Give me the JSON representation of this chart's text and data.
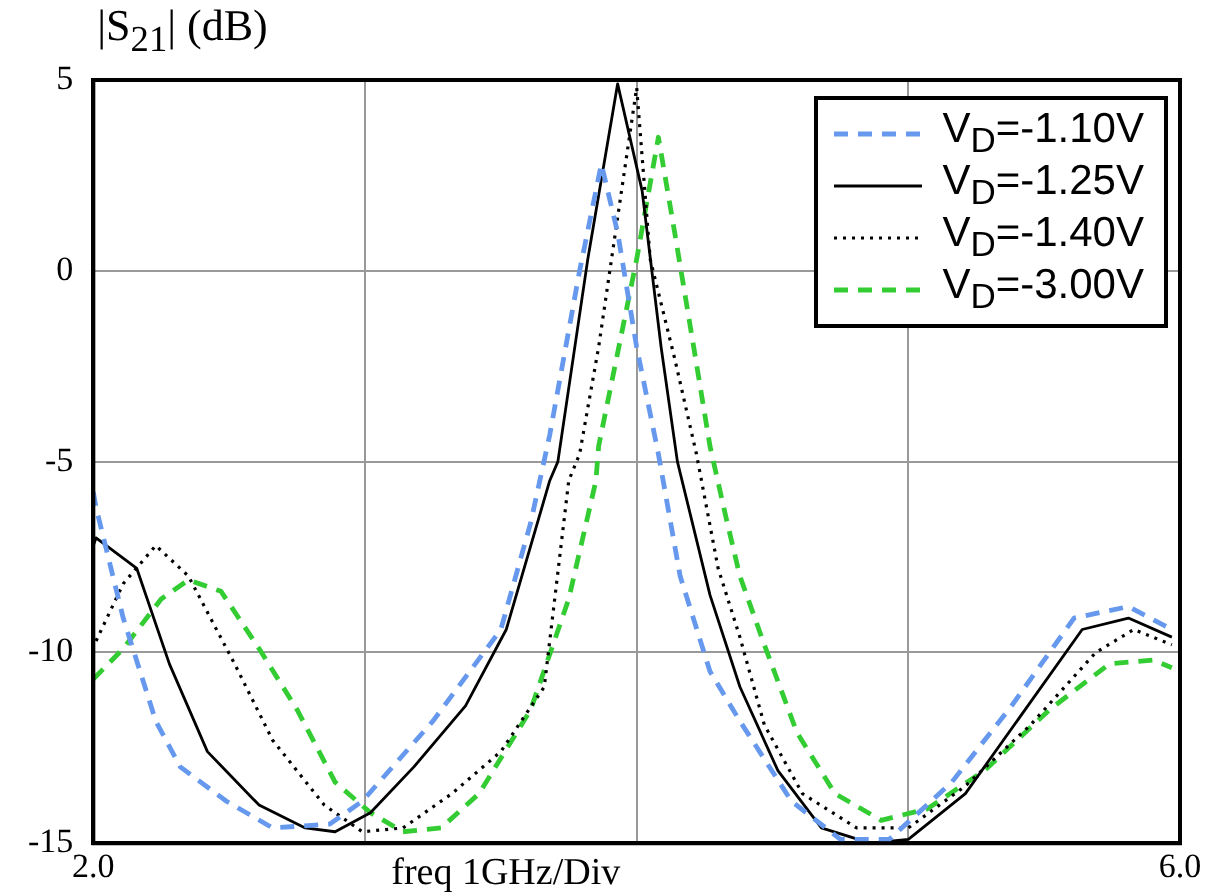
{
  "chart_data": {
    "type": "line",
    "xlabel": "freq 1GHz/Div",
    "ylabel": "|S$_{21}$| (dB)",
    "xlim": [
      2,
      6
    ],
    "xticks": [
      {
        "value": 2,
        "label": "2.0"
      },
      {
        "value": 3,
        "label": null
      },
      {
        "value": 4,
        "label": null
      },
      {
        "value": 5,
        "label": null
      },
      {
        "value": 6,
        "label": "6.0"
      }
    ],
    "ylim": [
      -15,
      5
    ],
    "yticks": [
      -15,
      -10,
      -5,
      0,
      5
    ],
    "grid": true,
    "legend": "top right",
    "marker": "none",
    "series": [
      {
        "name": "V$_{D}$=-1.10V",
        "color": "#6699ee",
        "line_style": "dashed",
        "x": [
          2.0,
          2.01,
          2.11,
          2.23,
          2.32,
          2.49,
          2.66,
          2.87,
          2.99,
          3.25,
          3.5,
          3.61,
          3.68,
          3.79,
          3.87,
          3.93,
          4.0,
          4.08,
          4.16,
          4.27,
          4.38,
          4.57,
          4.75,
          4.93,
          5.16,
          5.38,
          5.61,
          5.81,
          5.97
        ],
        "values": [
          -5.8,
          -6.2,
          -9.1,
          -11.8,
          -13.0,
          -13.9,
          -14.6,
          -14.5,
          -13.9,
          -11.8,
          -9.4,
          -6.6,
          -4.3,
          0,
          2.8,
          1,
          -2.0,
          -4.8,
          -8,
          -10.5,
          -11.8,
          -13.9,
          -14.9,
          -14.9,
          -13.4,
          -11.4,
          -9.1,
          -8.8,
          -9.4
        ]
      },
      {
        "name": "V$_{D}$=-1.25V",
        "color": "#000000",
        "line_style": "solid",
        "x": [
          2.0,
          2.01,
          2.16,
          2.28,
          2.42,
          2.61,
          2.78,
          2.89,
          3.02,
          3.18,
          3.37,
          3.52,
          3.68,
          3.71,
          3.82,
          3.93,
          4.02,
          4.09,
          4.15,
          4.27,
          4.38,
          4.52,
          4.68,
          4.86,
          5.0,
          5.21,
          5.43,
          5.64,
          5.81,
          5.97
        ],
        "values": [
          -7.2,
          -7.0,
          -7.8,
          -10.3,
          -12.6,
          -14.0,
          -14.6,
          -14.7,
          -14.2,
          -13.0,
          -11.4,
          -9.4,
          -5.5,
          -5.0,
          0.3,
          4.9,
          2.1,
          -2.0,
          -5.0,
          -8.5,
          -10.9,
          -13.1,
          -14.6,
          -15.0,
          -14.9,
          -13.7,
          -11.5,
          -9.4,
          -9.1,
          -9.6
        ]
      },
      {
        "name": "V$_{D}$=-1.40V",
        "color": "#000000",
        "line_style": "dotted",
        "x": [
          2.01,
          2.11,
          2.23,
          2.35,
          2.52,
          2.66,
          2.85,
          2.99,
          3.14,
          3.32,
          3.5,
          3.66,
          3.75,
          3.79,
          3.86,
          4.0,
          4.05,
          4.14,
          4.22,
          4.3,
          4.38,
          4.47,
          4.61,
          4.81,
          5.0,
          5.21,
          5.45,
          5.69,
          5.83,
          5.97
        ],
        "values": [
          -9.7,
          -8.2,
          -7.2,
          -8.0,
          -10.3,
          -12.3,
          -14.0,
          -14.7,
          -14.6,
          -13.7,
          -12.6,
          -10.9,
          -5.5,
          -4.8,
          -2.0,
          4.8,
          0.3,
          -2.3,
          -4.8,
          -7.8,
          -9.6,
          -11.9,
          -13.7,
          -14.6,
          -14.6,
          -13.5,
          -11.9,
          -10.0,
          -9.4,
          -9.8
        ]
      },
      {
        "name": "V$_{D}$=-3.00V",
        "color": "#33cc33",
        "line_style": "dashed",
        "x": [
          2.0,
          2.11,
          2.25,
          2.35,
          2.47,
          2.61,
          2.75,
          2.89,
          3.02,
          3.14,
          3.28,
          3.42,
          3.61,
          3.75,
          3.85,
          3.86,
          4.0,
          4.08,
          4.14,
          4.21,
          4.27,
          4.33,
          4.38,
          4.47,
          4.59,
          4.73,
          4.9,
          5.07,
          5.28,
          5.52,
          5.74,
          5.9,
          5.97
        ],
        "values": [
          -10.7,
          -9.9,
          -8.6,
          -8.1,
          -8.4,
          -9.9,
          -11.5,
          -13.4,
          -14.2,
          -14.7,
          -14.6,
          -13.7,
          -11.5,
          -8.6,
          -5.5,
          -4.6,
          0.3,
          3.5,
          1.0,
          -2.0,
          -4.6,
          -6.5,
          -8.0,
          -9.8,
          -12.1,
          -13.7,
          -14.4,
          -14.1,
          -13.1,
          -11.5,
          -10.3,
          -10.2,
          -10.4
        ]
      }
    ]
  }
}
